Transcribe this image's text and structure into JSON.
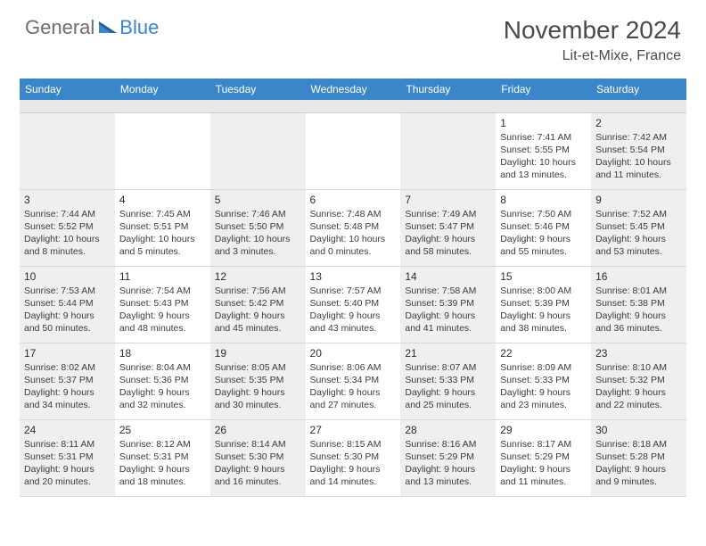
{
  "logo": {
    "word1": "General",
    "word2": "Blue"
  },
  "title": "November 2024",
  "location": "Lit-et-Mixe, France",
  "colors": {
    "header_bg": "#3a86c8",
    "header_text": "#ffffff",
    "logo_gray": "#6e6e6e",
    "logo_blue": "#3a86c8",
    "shade": "#efefef",
    "border": "#d8d8d8"
  },
  "day_names": [
    "Sunday",
    "Monday",
    "Tuesday",
    "Wednesday",
    "Thursday",
    "Friday",
    "Saturday"
  ],
  "weeks": [
    [
      {
        "blank": true,
        "shaded": true
      },
      {
        "blank": true,
        "shaded": false
      },
      {
        "blank": true,
        "shaded": true
      },
      {
        "blank": true,
        "shaded": false
      },
      {
        "blank": true,
        "shaded": true
      },
      {
        "day": "1",
        "shaded": false,
        "sunrise": "Sunrise: 7:41 AM",
        "sunset": "Sunset: 5:55 PM",
        "day1": "Daylight: 10 hours",
        "day2": "and 13 minutes."
      },
      {
        "day": "2",
        "shaded": true,
        "sunrise": "Sunrise: 7:42 AM",
        "sunset": "Sunset: 5:54 PM",
        "day1": "Daylight: 10 hours",
        "day2": "and 11 minutes."
      }
    ],
    [
      {
        "day": "3",
        "shaded": true,
        "sunrise": "Sunrise: 7:44 AM",
        "sunset": "Sunset: 5:52 PM",
        "day1": "Daylight: 10 hours",
        "day2": "and 8 minutes."
      },
      {
        "day": "4",
        "shaded": false,
        "sunrise": "Sunrise: 7:45 AM",
        "sunset": "Sunset: 5:51 PM",
        "day1": "Daylight: 10 hours",
        "day2": "and 5 minutes."
      },
      {
        "day": "5",
        "shaded": true,
        "sunrise": "Sunrise: 7:46 AM",
        "sunset": "Sunset: 5:50 PM",
        "day1": "Daylight: 10 hours",
        "day2": "and 3 minutes."
      },
      {
        "day": "6",
        "shaded": false,
        "sunrise": "Sunrise: 7:48 AM",
        "sunset": "Sunset: 5:48 PM",
        "day1": "Daylight: 10 hours",
        "day2": "and 0 minutes."
      },
      {
        "day": "7",
        "shaded": true,
        "sunrise": "Sunrise: 7:49 AM",
        "sunset": "Sunset: 5:47 PM",
        "day1": "Daylight: 9 hours",
        "day2": "and 58 minutes."
      },
      {
        "day": "8",
        "shaded": false,
        "sunrise": "Sunrise: 7:50 AM",
        "sunset": "Sunset: 5:46 PM",
        "day1": "Daylight: 9 hours",
        "day2": "and 55 minutes."
      },
      {
        "day": "9",
        "shaded": true,
        "sunrise": "Sunrise: 7:52 AM",
        "sunset": "Sunset: 5:45 PM",
        "day1": "Daylight: 9 hours",
        "day2": "and 53 minutes."
      }
    ],
    [
      {
        "day": "10",
        "shaded": true,
        "sunrise": "Sunrise: 7:53 AM",
        "sunset": "Sunset: 5:44 PM",
        "day1": "Daylight: 9 hours",
        "day2": "and 50 minutes."
      },
      {
        "day": "11",
        "shaded": false,
        "sunrise": "Sunrise: 7:54 AM",
        "sunset": "Sunset: 5:43 PM",
        "day1": "Daylight: 9 hours",
        "day2": "and 48 minutes."
      },
      {
        "day": "12",
        "shaded": true,
        "sunrise": "Sunrise: 7:56 AM",
        "sunset": "Sunset: 5:42 PM",
        "day1": "Daylight: 9 hours",
        "day2": "and 45 minutes."
      },
      {
        "day": "13",
        "shaded": false,
        "sunrise": "Sunrise: 7:57 AM",
        "sunset": "Sunset: 5:40 PM",
        "day1": "Daylight: 9 hours",
        "day2": "and 43 minutes."
      },
      {
        "day": "14",
        "shaded": true,
        "sunrise": "Sunrise: 7:58 AM",
        "sunset": "Sunset: 5:39 PM",
        "day1": "Daylight: 9 hours",
        "day2": "and 41 minutes."
      },
      {
        "day": "15",
        "shaded": false,
        "sunrise": "Sunrise: 8:00 AM",
        "sunset": "Sunset: 5:39 PM",
        "day1": "Daylight: 9 hours",
        "day2": "and 38 minutes."
      },
      {
        "day": "16",
        "shaded": true,
        "sunrise": "Sunrise: 8:01 AM",
        "sunset": "Sunset: 5:38 PM",
        "day1": "Daylight: 9 hours",
        "day2": "and 36 minutes."
      }
    ],
    [
      {
        "day": "17",
        "shaded": true,
        "sunrise": "Sunrise: 8:02 AM",
        "sunset": "Sunset: 5:37 PM",
        "day1": "Daylight: 9 hours",
        "day2": "and 34 minutes."
      },
      {
        "day": "18",
        "shaded": false,
        "sunrise": "Sunrise: 8:04 AM",
        "sunset": "Sunset: 5:36 PM",
        "day1": "Daylight: 9 hours",
        "day2": "and 32 minutes."
      },
      {
        "day": "19",
        "shaded": true,
        "sunrise": "Sunrise: 8:05 AM",
        "sunset": "Sunset: 5:35 PM",
        "day1": "Daylight: 9 hours",
        "day2": "and 30 minutes."
      },
      {
        "day": "20",
        "shaded": false,
        "sunrise": "Sunrise: 8:06 AM",
        "sunset": "Sunset: 5:34 PM",
        "day1": "Daylight: 9 hours",
        "day2": "and 27 minutes."
      },
      {
        "day": "21",
        "shaded": true,
        "sunrise": "Sunrise: 8:07 AM",
        "sunset": "Sunset: 5:33 PM",
        "day1": "Daylight: 9 hours",
        "day2": "and 25 minutes."
      },
      {
        "day": "22",
        "shaded": false,
        "sunrise": "Sunrise: 8:09 AM",
        "sunset": "Sunset: 5:33 PM",
        "day1": "Daylight: 9 hours",
        "day2": "and 23 minutes."
      },
      {
        "day": "23",
        "shaded": true,
        "sunrise": "Sunrise: 8:10 AM",
        "sunset": "Sunset: 5:32 PM",
        "day1": "Daylight: 9 hours",
        "day2": "and 22 minutes."
      }
    ],
    [
      {
        "day": "24",
        "shaded": true,
        "sunrise": "Sunrise: 8:11 AM",
        "sunset": "Sunset: 5:31 PM",
        "day1": "Daylight: 9 hours",
        "day2": "and 20 minutes."
      },
      {
        "day": "25",
        "shaded": false,
        "sunrise": "Sunrise: 8:12 AM",
        "sunset": "Sunset: 5:31 PM",
        "day1": "Daylight: 9 hours",
        "day2": "and 18 minutes."
      },
      {
        "day": "26",
        "shaded": true,
        "sunrise": "Sunrise: 8:14 AM",
        "sunset": "Sunset: 5:30 PM",
        "day1": "Daylight: 9 hours",
        "day2": "and 16 minutes."
      },
      {
        "day": "27",
        "shaded": false,
        "sunrise": "Sunrise: 8:15 AM",
        "sunset": "Sunset: 5:30 PM",
        "day1": "Daylight: 9 hours",
        "day2": "and 14 minutes."
      },
      {
        "day": "28",
        "shaded": true,
        "sunrise": "Sunrise: 8:16 AM",
        "sunset": "Sunset: 5:29 PM",
        "day1": "Daylight: 9 hours",
        "day2": "and 13 minutes."
      },
      {
        "day": "29",
        "shaded": false,
        "sunrise": "Sunrise: 8:17 AM",
        "sunset": "Sunset: 5:29 PM",
        "day1": "Daylight: 9 hours",
        "day2": "and 11 minutes."
      },
      {
        "day": "30",
        "shaded": true,
        "sunrise": "Sunrise: 8:18 AM",
        "sunset": "Sunset: 5:28 PM",
        "day1": "Daylight: 9 hours",
        "day2": "and 9 minutes."
      }
    ]
  ]
}
